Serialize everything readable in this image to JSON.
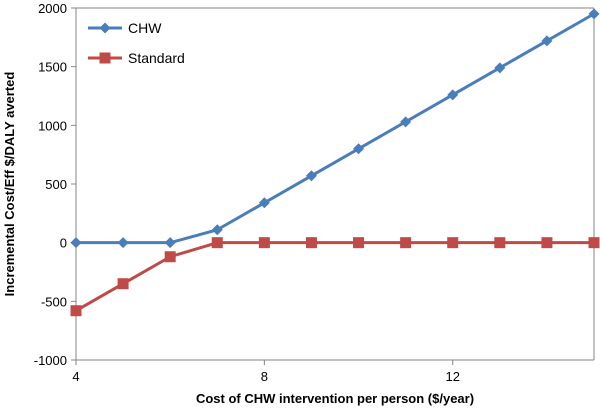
{
  "chart_data": {
    "type": "line",
    "title": "",
    "xlabel": "Cost of CHW intervention per person ($/year)",
    "ylabel": "Incremental Cost/Eff $/DALY averted",
    "xlim": [
      4,
      15
    ],
    "ylim": [
      -1000,
      2000
    ],
    "xticks": [
      4,
      8,
      12
    ],
    "yticks": [
      -1000,
      -500,
      0,
      500,
      1000,
      1500,
      2000
    ],
    "grid": false,
    "legend": "top-left",
    "x": [
      4,
      5,
      6,
      7,
      8,
      9,
      10,
      11,
      12,
      13,
      14,
      15
    ],
    "series": [
      {
        "name": "CHW",
        "color": "#4a7ebb",
        "marker": "diamond",
        "values": [
          0,
          0,
          0,
          110,
          340,
          570,
          800,
          1030,
          1260,
          1490,
          1720,
          1950
        ]
      },
      {
        "name": "Standard",
        "color": "#be4b48",
        "marker": "square",
        "values": [
          -580,
          -350,
          -120,
          0,
          0,
          0,
          0,
          0,
          0,
          0,
          0,
          0
        ]
      }
    ]
  }
}
